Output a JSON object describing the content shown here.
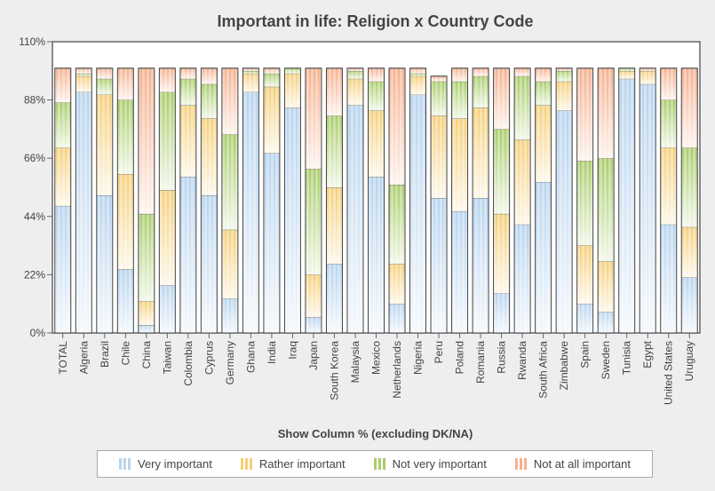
{
  "chart_data": {
    "type": "bar",
    "stacked": true,
    "title": "Important in life: Religion x Country Code",
    "xlabel": "Show Column % (excluding DK/NA)",
    "ylabel": "",
    "ylim": [
      0,
      110
    ],
    "yticks": [
      0,
      22,
      44,
      66,
      88,
      110
    ],
    "ytick_suffix": "%",
    "grid": false,
    "legend": "bottom",
    "categories": [
      "TOTAL",
      "Algeria",
      "Brazil",
      "Chile",
      "China",
      "Taiwan",
      "Colombia",
      "Cyprus",
      "Germany",
      "Ghana",
      "India",
      "Iraq",
      "Japan",
      "South Korea",
      "Malaysia",
      "Mexico",
      "Netherlands",
      "Nigeria",
      "Peru",
      "Poland",
      "Romania",
      "Russia",
      "Rwanda",
      "South Africa",
      "Zimbabwe",
      "Spain",
      "Sweden",
      "Tunisia",
      "Egypt",
      "United States",
      "Uruguay"
    ],
    "series": [
      {
        "name": "Very important",
        "color": "#b8d4ee",
        "values": [
          48,
          91,
          52,
          24,
          3,
          18,
          59,
          52,
          13,
          91,
          68,
          85,
          6,
          26,
          86,
          59,
          11,
          90,
          51,
          46,
          51,
          15,
          41,
          57,
          84,
          11,
          8,
          96,
          94,
          41,
          21
        ]
      },
      {
        "name": "Rather important",
        "color": "#f5cf7a",
        "values": [
          22,
          6,
          38,
          36,
          9,
          36,
          27,
          29,
          26,
          7,
          25,
          13,
          16,
          29,
          10,
          25,
          15,
          7,
          31,
          35,
          34,
          30,
          32,
          29,
          11,
          22,
          19,
          3,
          5,
          29,
          19
        ]
      },
      {
        "name": "Not very important",
        "color": "#a8cc6a",
        "values": [
          17,
          1,
          6,
          28,
          33,
          37,
          10,
          13,
          36,
          1,
          5,
          2,
          40,
          27,
          3,
          11,
          30,
          1,
          13,
          14,
          12,
          32,
          24,
          9,
          4,
          32,
          39,
          1,
          0,
          18,
          30
        ]
      },
      {
        "name": "Not at all important",
        "color": "#f5b08e",
        "values": [
          13,
          2,
          4,
          12,
          55,
          9,
          4,
          6,
          25,
          1,
          2,
          0,
          38,
          18,
          1,
          5,
          44,
          2,
          2,
          5,
          3,
          23,
          3,
          5,
          1,
          35,
          34,
          0,
          1,
          12,
          30
        ]
      }
    ]
  }
}
